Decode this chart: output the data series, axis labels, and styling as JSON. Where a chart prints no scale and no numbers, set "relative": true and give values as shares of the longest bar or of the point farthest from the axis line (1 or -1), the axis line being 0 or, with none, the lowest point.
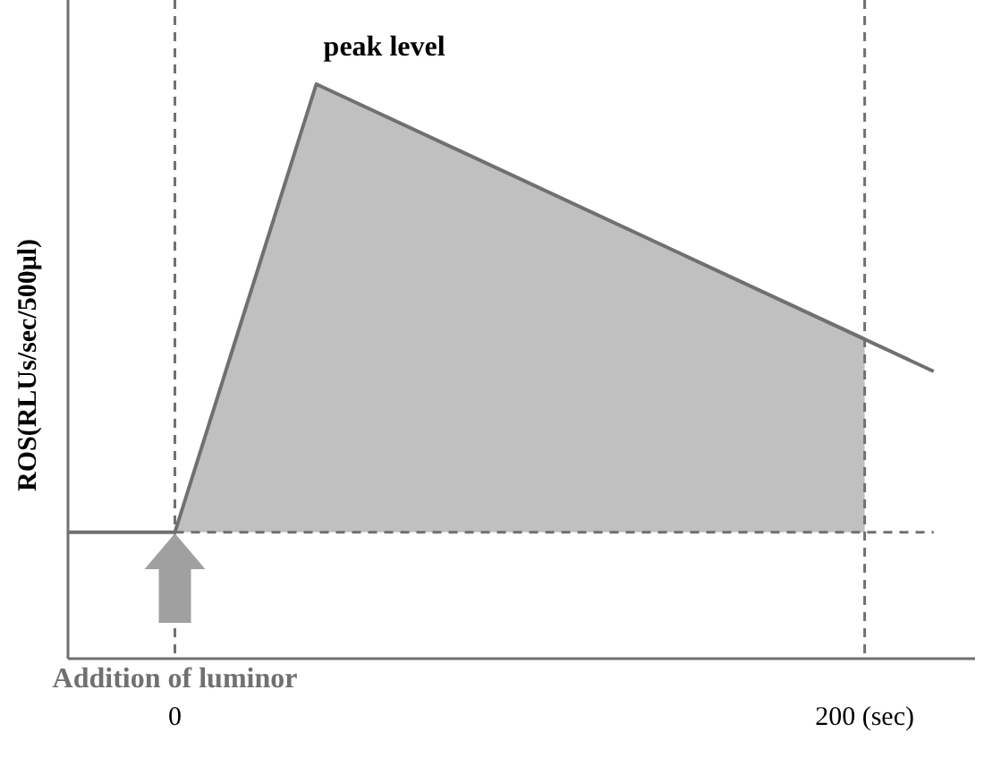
{
  "chart_data": {
    "type": "line",
    "relative": true,
    "ylabel": "ROS(RLUs/sec/500μl)",
    "xlim": [
      -31,
      232
    ],
    "xticks": [
      0,
      {
        "value": 200,
        "label": "200 (sec)"
      }
    ],
    "series": [
      {
        "type": "area",
        "color": "#c0c0c0",
        "x": [
          0,
          41,
          200
        ],
        "values": [
          0.22,
          1,
          0.56
        ]
      },
      {
        "color": "#707070",
        "x": [
          0,
          41,
          220
        ],
        "values": [
          0.22,
          1,
          0.5
        ]
      },
      {
        "color": "#707070",
        "x": [
          -31,
          0
        ],
        "values": [
          0.22,
          0.22
        ]
      }
    ],
    "ref_lines": [
      {
        "axis": "y",
        "value": 0.22,
        "line_style": "dashed",
        "color": "#707070"
      },
      {
        "axis": "x",
        "value": 0,
        "line_style": "dashed",
        "color": "#707070"
      },
      {
        "axis": "x",
        "value": 200,
        "line_style": "dashed",
        "color": "#707070"
      }
    ],
    "annotations": [
      {
        "text": "peak level",
        "x": 41,
        "y": 1
      },
      "Addition of luminor"
    ],
    "line_style": "solid"
  }
}
